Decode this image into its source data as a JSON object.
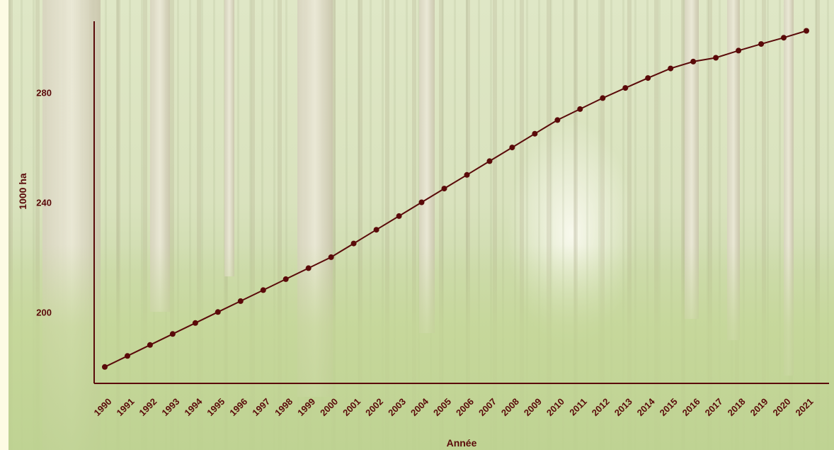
{
  "chart_data": {
    "type": "line",
    "title": "",
    "xlabel": "Année",
    "ylabel": "1000 ha",
    "x": [
      "1990",
      "1991",
      "1992",
      "1993",
      "1994",
      "1995",
      "1996",
      "1997",
      "1998",
      "1999",
      "2000",
      "2001",
      "2002",
      "2003",
      "2004",
      "2005",
      "2006",
      "2007",
      "2008",
      "2009",
      "2010",
      "2011",
      "2012",
      "2013",
      "2014",
      "2015",
      "2016",
      "2017",
      "2018",
      "2019",
      "2020",
      "2021"
    ],
    "series": [
      {
        "values": [
          180,
          184,
          188,
          192,
          196,
          200,
          204,
          208,
          212,
          216,
          220,
          225,
          230,
          235,
          240,
          245,
          250,
          255,
          260,
          265,
          270,
          274,
          278,
          281.7,
          285.3,
          288.8,
          291.3,
          292.7,
          295.3,
          297.7,
          300,
          302.5
        ]
      }
    ],
    "yticks": [
      200,
      240,
      280
    ],
    "ylim": [
      174,
      306
    ],
    "grid": false,
    "colors": {
      "line": "#5a0a0a",
      "axis": "#5a0a0a",
      "background": "#fdfbe4"
    }
  }
}
